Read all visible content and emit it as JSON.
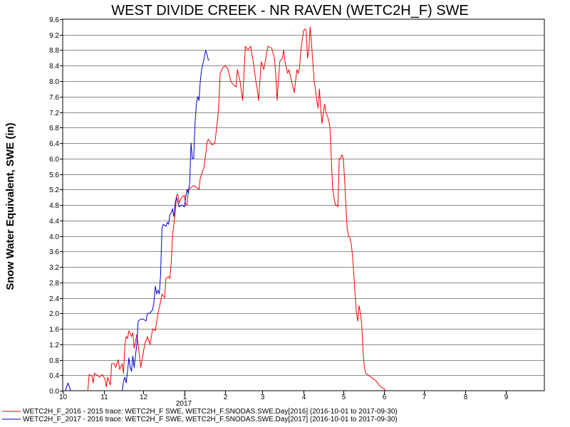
{
  "chart_data": {
    "type": "line",
    "title": "WEST DIVIDE CREEK - NR RAVEN (WETC2H_F) SWE",
    "ylabel": "Snow Water Equivalent, SWE (in)",
    "xlabel": "",
    "ylim": [
      0,
      9.6
    ],
    "y_ticks": [
      "0.0",
      "0.4",
      "0.8",
      "1.2",
      "1.6",
      "2.0",
      "2.4",
      "2.8",
      "3.2",
      "3.6",
      "4.0",
      "4.4",
      "4.8",
      "5.2",
      "5.6",
      "6.0",
      "6.4",
      "6.8",
      "7.2",
      "7.6",
      "8.0",
      "8.4",
      "8.8",
      "9.2",
      "9.6"
    ],
    "x_axis": {
      "start": "2016-10-01",
      "end": "2017-09-30"
    },
    "x_ticks": [
      {
        "label": "10",
        "date": "2016-10-01"
      },
      {
        "label": "11",
        "date": "2016-11-01"
      },
      {
        "label": "12",
        "date": "2016-12-01"
      },
      {
        "label": "1",
        "date": "2017-01-01"
      },
      {
        "label": "2",
        "date": "2017-02-01"
      },
      {
        "label": "3",
        "date": "2017-03-01"
      },
      {
        "label": "4",
        "date": "2017-04-01"
      },
      {
        "label": "5",
        "date": "2017-05-01"
      },
      {
        "label": "6",
        "date": "2017-06-01"
      },
      {
        "label": "7",
        "date": "2017-07-01"
      },
      {
        "label": "8",
        "date": "2017-08-01"
      },
      {
        "label": "9",
        "date": "2017-09-01"
      }
    ],
    "year_label": "2017",
    "grid": true,
    "legend_position": "bottom-left",
    "series": [
      {
        "name": "WETC2H_F_2016 - 2015 trace: WETC2H_F SWE, WETC2H_F.SNODAS.SWE.Day[2016] (2016-10-01 to 2017-09-30)",
        "color": "#ff0000",
        "points": [
          [
            "2016-10-01",
            0
          ],
          [
            "2016-10-20",
            0
          ],
          [
            "2016-10-21",
            0.42
          ],
          [
            "2016-10-23",
            0.38
          ],
          [
            "2016-10-24",
            0.2
          ],
          [
            "2016-10-25",
            0.45
          ],
          [
            "2016-10-27",
            0.4
          ],
          [
            "2016-10-29",
            0.35
          ],
          [
            "2016-10-31",
            0.42
          ],
          [
            "2016-11-02",
            0.3
          ],
          [
            "2016-11-03",
            0.1
          ],
          [
            "2016-11-04",
            0.35
          ],
          [
            "2016-11-06",
            0.15
          ],
          [
            "2016-11-07",
            0.7
          ],
          [
            "2016-11-09",
            0.7
          ],
          [
            "2016-11-10",
            0.6
          ],
          [
            "2016-11-12",
            0.8
          ],
          [
            "2016-11-13",
            0.55
          ],
          [
            "2016-11-15",
            0.7
          ],
          [
            "2016-11-16",
            0.45
          ],
          [
            "2016-11-17",
            1.2
          ],
          [
            "2016-11-18",
            1.4
          ],
          [
            "2016-11-19",
            1.35
          ],
          [
            "2016-11-20",
            1.55
          ],
          [
            "2016-11-22",
            1.4
          ],
          [
            "2016-11-23",
            1.5
          ],
          [
            "2016-11-24",
            1.1
          ],
          [
            "2016-11-26",
            1.45
          ],
          [
            "2016-11-27",
            1.2
          ],
          [
            "2016-11-28",
            0.9
          ],
          [
            "2016-11-29",
            0.6
          ],
          [
            "2016-12-01",
            1.0
          ],
          [
            "2016-12-02",
            1.2
          ],
          [
            "2016-12-04",
            1.4
          ],
          [
            "2016-12-06",
            1.2
          ],
          [
            "2016-12-08",
            1.6
          ],
          [
            "2016-12-10",
            1.55
          ],
          [
            "2016-12-12",
            2.0
          ],
          [
            "2016-12-14",
            2.3
          ],
          [
            "2016-12-15",
            2.5
          ],
          [
            "2016-12-17",
            2.4
          ],
          [
            "2016-12-18",
            2.9
          ],
          [
            "2016-12-20",
            2.95
          ],
          [
            "2016-12-21",
            2.9
          ],
          [
            "2016-12-22",
            3.3
          ],
          [
            "2016-12-23",
            4.0
          ],
          [
            "2016-12-24",
            4.3
          ],
          [
            "2016-12-25",
            4.6
          ],
          [
            "2016-12-26",
            5.05
          ],
          [
            "2016-12-27",
            5.08
          ],
          [
            "2016-12-28",
            4.85
          ],
          [
            "2016-12-30",
            5.0
          ],
          [
            "2017-01-01",
            5.05
          ],
          [
            "2017-01-02",
            4.8
          ],
          [
            "2017-01-03",
            4.8
          ],
          [
            "2017-01-04",
            5.2
          ],
          [
            "2017-01-06",
            5.25
          ],
          [
            "2017-01-08",
            5.3
          ],
          [
            "2017-01-10",
            5.25
          ],
          [
            "2017-01-12",
            5.2
          ],
          [
            "2017-01-13",
            5.5
          ],
          [
            "2017-01-15",
            5.7
          ],
          [
            "2017-01-16",
            5.8
          ],
          [
            "2017-01-17",
            6.1
          ],
          [
            "2017-01-18",
            6.4
          ],
          [
            "2017-01-19",
            6.5
          ],
          [
            "2017-01-20",
            6.45
          ],
          [
            "2017-01-22",
            6.35
          ],
          [
            "2017-01-24",
            6.4
          ],
          [
            "2017-01-26",
            7.0
          ],
          [
            "2017-01-27",
            7.4
          ],
          [
            "2017-01-28",
            8.2
          ],
          [
            "2017-01-30",
            8.35
          ],
          [
            "2017-02-01",
            8.4
          ],
          [
            "2017-02-03",
            8.3
          ],
          [
            "2017-02-05",
            8.0
          ],
          [
            "2017-02-07",
            7.9
          ],
          [
            "2017-02-09",
            7.85
          ],
          [
            "2017-02-10",
            8.3
          ],
          [
            "2017-02-12",
            8.0
          ],
          [
            "2017-02-14",
            7.5
          ],
          [
            "2017-02-16",
            8.9
          ],
          [
            "2017-02-18",
            8.8
          ],
          [
            "2017-02-20",
            8.9
          ],
          [
            "2017-02-22",
            8.5
          ],
          [
            "2017-02-24",
            8.0
          ],
          [
            "2017-02-25",
            7.8
          ],
          [
            "2017-02-26",
            7.5
          ],
          [
            "2017-02-28",
            8.5
          ],
          [
            "2017-03-02",
            8.3
          ],
          [
            "2017-03-05",
            8.9
          ],
          [
            "2017-03-08",
            8.85
          ],
          [
            "2017-03-10",
            8.6
          ],
          [
            "2017-03-11",
            8.2
          ],
          [
            "2017-03-12",
            7.5
          ],
          [
            "2017-03-14",
            8.5
          ],
          [
            "2017-03-16",
            8.6
          ],
          [
            "2017-03-17",
            8.8
          ],
          [
            "2017-03-18",
            8.5
          ],
          [
            "2017-03-20",
            8.2
          ],
          [
            "2017-03-21",
            8.3
          ],
          [
            "2017-03-23",
            8.0
          ],
          [
            "2017-03-25",
            7.7
          ],
          [
            "2017-03-27",
            8.3
          ],
          [
            "2017-03-28",
            8.2
          ],
          [
            "2017-03-29",
            8.35
          ],
          [
            "2017-03-30",
            8.8
          ],
          [
            "2017-04-01",
            9.3
          ],
          [
            "2017-04-02",
            9.35
          ],
          [
            "2017-04-03",
            9.3
          ],
          [
            "2017-04-04",
            8.6
          ],
          [
            "2017-04-05",
            8.8
          ],
          [
            "2017-04-06",
            9.4
          ],
          [
            "2017-04-07",
            9.0
          ],
          [
            "2017-04-08",
            8.5
          ],
          [
            "2017-04-09",
            8.0
          ],
          [
            "2017-04-10",
            7.8
          ],
          [
            "2017-04-11",
            7.5
          ],
          [
            "2017-04-12",
            7.3
          ],
          [
            "2017-04-13",
            7.8
          ],
          [
            "2017-04-14",
            7.3
          ],
          [
            "2017-04-15",
            6.9
          ],
          [
            "2017-04-16",
            7.2
          ],
          [
            "2017-04-17",
            7.4
          ],
          [
            "2017-04-18",
            7.2
          ],
          [
            "2017-04-19",
            7.1
          ],
          [
            "2017-04-20",
            7.0
          ],
          [
            "2017-04-21",
            6.8
          ],
          [
            "2017-04-22",
            6.0
          ],
          [
            "2017-04-23",
            5.2
          ],
          [
            "2017-04-24",
            5.0
          ],
          [
            "2017-04-25",
            4.8
          ],
          [
            "2017-04-26",
            4.8
          ],
          [
            "2017-04-27",
            4.75
          ],
          [
            "2017-04-28",
            6.0
          ],
          [
            "2017-04-29",
            6.0
          ],
          [
            "2017-04-30",
            6.1
          ],
          [
            "2017-05-01",
            6.0
          ],
          [
            "2017-05-02",
            5.5
          ],
          [
            "2017-05-03",
            4.8
          ],
          [
            "2017-05-04",
            4.2
          ],
          [
            "2017-05-05",
            4.0
          ],
          [
            "2017-05-06",
            3.95
          ],
          [
            "2017-05-07",
            3.8
          ],
          [
            "2017-05-08",
            3.5
          ],
          [
            "2017-05-09",
            3.0
          ],
          [
            "2017-05-10",
            2.5
          ],
          [
            "2017-05-11",
            2.0
          ],
          [
            "2017-05-12",
            1.8
          ],
          [
            "2017-05-13",
            2.2
          ],
          [
            "2017-05-14",
            2.0
          ],
          [
            "2017-05-15",
            1.7
          ],
          [
            "2017-05-16",
            1.0
          ],
          [
            "2017-05-17",
            0.6
          ],
          [
            "2017-05-18",
            0.45
          ],
          [
            "2017-05-20",
            0.4
          ],
          [
            "2017-05-22",
            0.35
          ],
          [
            "2017-05-24",
            0.3
          ],
          [
            "2017-05-26",
            0.25
          ],
          [
            "2017-05-28",
            0.15
          ],
          [
            "2017-05-30",
            0.08
          ],
          [
            "2017-06-01",
            0.05
          ],
          [
            "2017-06-02",
            0.0
          ],
          [
            "2017-09-30",
            0.0
          ]
        ]
      },
      {
        "name": "WETC2H_F_2017 - 2016 trace: WETC2H_F SWE, WETC2H_F.SNODAS.SWE.Day[2017] (2016-10-01 to 2017-09-30)",
        "color": "#0000cc",
        "points": [
          [
            "2016-10-01",
            0
          ],
          [
            "2016-10-03",
            0
          ],
          [
            "2016-10-04",
            0.1
          ],
          [
            "2016-10-05",
            0.2
          ],
          [
            "2016-10-06",
            0.1
          ],
          [
            "2016-10-07",
            0
          ],
          [
            "2016-11-15",
            0
          ],
          [
            "2016-11-16",
            0.25
          ],
          [
            "2016-11-17",
            0.35
          ],
          [
            "2016-11-18",
            0.2
          ],
          [
            "2016-11-19",
            0.5
          ],
          [
            "2016-11-20",
            0.85
          ],
          [
            "2016-11-21",
            0.6
          ],
          [
            "2016-11-22",
            0.5
          ],
          [
            "2016-11-23",
            0.9
          ],
          [
            "2016-11-24",
            0.6
          ],
          [
            "2016-11-26",
            1.2
          ],
          [
            "2016-11-27",
            1.8
          ],
          [
            "2016-11-29",
            1.85
          ],
          [
            "2016-12-01",
            1.85
          ],
          [
            "2016-12-03",
            1.8
          ],
          [
            "2016-12-04",
            2.0
          ],
          [
            "2016-12-06",
            2.0
          ],
          [
            "2016-12-08",
            2.1
          ],
          [
            "2016-12-09",
            2.3
          ],
          [
            "2016-12-10",
            2.7
          ],
          [
            "2016-12-11",
            2.5
          ],
          [
            "2016-12-12",
            2.6
          ],
          [
            "2016-12-13",
            2.5
          ],
          [
            "2016-12-14",
            3.0
          ],
          [
            "2016-12-15",
            4.2
          ],
          [
            "2016-12-16",
            4.3
          ],
          [
            "2016-12-18",
            4.25
          ],
          [
            "2016-12-19",
            4.35
          ],
          [
            "2016-12-20",
            4.3
          ],
          [
            "2016-12-21",
            4.55
          ],
          [
            "2016-12-22",
            4.6
          ],
          [
            "2016-12-23",
            4.7
          ],
          [
            "2016-12-24",
            4.5
          ],
          [
            "2016-12-25",
            4.85
          ],
          [
            "2016-12-26",
            5.0
          ],
          [
            "2016-12-28",
            4.75
          ],
          [
            "2016-12-30",
            4.8
          ],
          [
            "2017-01-01",
            4.75
          ],
          [
            "2017-01-02",
            5.0
          ],
          [
            "2017-01-03",
            5.2
          ],
          [
            "2017-01-04",
            5.1
          ],
          [
            "2017-01-05",
            5.4
          ],
          [
            "2017-01-06",
            6.4
          ],
          [
            "2017-01-07",
            6.0
          ],
          [
            "2017-01-08",
            6.0
          ],
          [
            "2017-01-09",
            6.9
          ],
          [
            "2017-01-10",
            7.4
          ],
          [
            "2017-01-11",
            7.6
          ],
          [
            "2017-01-12",
            7.5
          ],
          [
            "2017-01-13",
            8.0
          ],
          [
            "2017-01-14",
            8.3
          ],
          [
            "2017-01-16",
            8.6
          ],
          [
            "2017-01-17",
            8.8
          ],
          [
            "2017-01-18",
            8.7
          ],
          [
            "2017-01-19",
            8.55
          ],
          [
            "2017-01-20",
            8.55
          ]
        ]
      }
    ]
  }
}
